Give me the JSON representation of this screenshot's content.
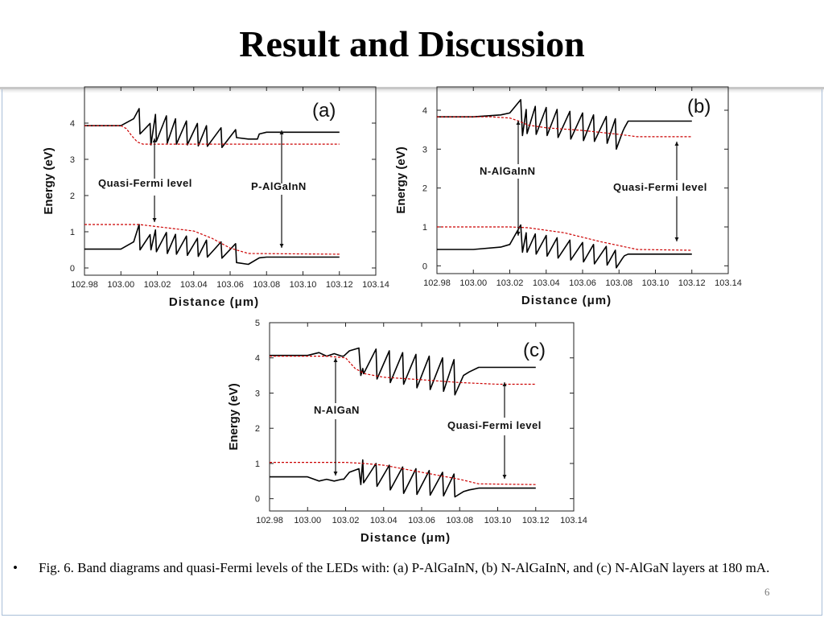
{
  "slide": {
    "title": "Result and Discussion",
    "caption_bullet": "•",
    "caption": "Fig. 6. Band diagrams and quasi-Fermi levels of the LEDs with: (a) P-AlGaInN, (b) N-AlGaInN, and (c) N-AlGaN layers at 180 mA.",
    "page_number": "6"
  },
  "chart_data": [
    {
      "type": "line",
      "panel_label": "(a)",
      "xlabel": "Distance (μm)",
      "ylabel": "Energy (eV)",
      "xlim": [
        102.98,
        103.14
      ],
      "ylim": [
        -0.2,
        5
      ],
      "xticks": [
        102.98,
        103.0,
        103.02,
        103.04,
        103.06,
        103.08,
        103.1,
        103.12,
        103.14
      ],
      "xtick_labels": [
        "102.98",
        "103.00",
        "103.02",
        "103.04",
        "103.06",
        "103.08",
        "103.10",
        "103.12",
        "103.14"
      ],
      "yticks": [
        0,
        1,
        2,
        3,
        4
      ],
      "ytick_labels": [
        "0",
        "1",
        "2",
        "3",
        "4"
      ],
      "annotations": [
        "Quasi-Fermi level",
        "P-AlGaInN"
      ],
      "series": [
        {
          "style": "solid",
          "color": "#000000",
          "x": [
            102.98,
            103.0,
            103.007,
            103.01,
            103.0105,
            103.016,
            103.0165,
            103.019,
            103.0195,
            103.025,
            103.0255,
            103.03,
            103.0305,
            103.036,
            103.0365,
            103.042,
            103.0425,
            103.047,
            103.0475,
            103.055,
            103.0555,
            103.063,
            103.0635,
            103.07,
            103.075,
            103.076,
            103.08,
            103.12
          ],
          "y": [
            3.93,
            3.93,
            4.12,
            4.4,
            3.7,
            3.99,
            3.4,
            4.24,
            3.5,
            4.2,
            3.45,
            4.12,
            3.42,
            4.06,
            3.4,
            3.99,
            3.37,
            3.93,
            3.36,
            3.87,
            3.33,
            3.82,
            3.6,
            3.56,
            3.56,
            3.7,
            3.75,
            3.75
          ]
        },
        {
          "style": "dashed",
          "color": "#cc0000",
          "x": [
            102.98,
            103.0,
            103.003,
            103.006,
            103.009,
            103.012,
            103.016,
            103.12
          ],
          "y": [
            3.93,
            3.93,
            3.85,
            3.65,
            3.48,
            3.42,
            3.42,
            3.42
          ]
        },
        {
          "style": "solid",
          "color": "#000000",
          "x": [
            102.98,
            103.0,
            103.007,
            103.01,
            103.0105,
            103.016,
            103.0165,
            103.019,
            103.0195,
            103.025,
            103.0255,
            103.03,
            103.0305,
            103.036,
            103.0365,
            103.042,
            103.0425,
            103.047,
            103.0475,
            103.055,
            103.0555,
            103.063,
            103.0635,
            103.07,
            103.075,
            103.076,
            103.08,
            103.12
          ],
          "y": [
            0.52,
            0.52,
            0.72,
            1.2,
            0.5,
            0.92,
            0.5,
            1.05,
            0.45,
            0.98,
            0.4,
            0.93,
            0.38,
            0.88,
            0.35,
            0.82,
            0.32,
            0.77,
            0.3,
            0.72,
            0.27,
            0.67,
            0.15,
            0.1,
            0.25,
            0.28,
            0.3,
            0.3
          ]
        },
        {
          "style": "dashed",
          "color": "#cc0000",
          "x": [
            102.98,
            103.01,
            103.04,
            103.05,
            103.06,
            103.07,
            103.12
          ],
          "y": [
            1.2,
            1.2,
            1.02,
            0.82,
            0.55,
            0.4,
            0.38
          ]
        }
      ]
    },
    {
      "type": "line",
      "panel_label": "(b)",
      "xlabel": "Distance (μm)",
      "ylabel": "Energy (eV)",
      "xlim": [
        102.98,
        103.14
      ],
      "ylim": [
        -0.2,
        4.6
      ],
      "xticks": [
        102.98,
        103.0,
        103.02,
        103.04,
        103.06,
        103.08,
        103.1,
        103.12,
        103.14
      ],
      "xtick_labels": [
        "102.98",
        "103.00",
        "103.02",
        "103.04",
        "103.06",
        "103.08",
        "103.10",
        "103.12",
        "103.14"
      ],
      "yticks": [
        0,
        1,
        2,
        3,
        4
      ],
      "ytick_labels": [
        "0",
        "1",
        "2",
        "3",
        "4"
      ],
      "annotations": [
        "N-AlGaInN",
        "Quasi-Fermi level"
      ],
      "series": [
        {
          "style": "solid",
          "color": "#000000",
          "x": [
            102.98,
            103.0,
            103.015,
            103.02,
            103.026,
            103.027,
            103.029,
            103.0295,
            103.034,
            103.0345,
            103.04,
            103.0405,
            103.046,
            103.0465,
            103.053,
            103.0535,
            103.06,
            103.0605,
            103.066,
            103.0665,
            103.073,
            103.0735,
            103.078,
            103.0785,
            103.082,
            103.083,
            103.085,
            103.12
          ],
          "y": [
            3.83,
            3.83,
            3.88,
            3.93,
            4.27,
            3.35,
            4.02,
            3.4,
            4.1,
            3.38,
            4.07,
            3.35,
            4.02,
            3.3,
            3.97,
            3.26,
            3.93,
            3.22,
            3.88,
            3.2,
            3.84,
            3.15,
            3.78,
            3.0,
            3.45,
            3.55,
            3.72,
            3.72
          ]
        },
        {
          "style": "dashed",
          "color": "#cc0000",
          "x": [
            102.98,
            103.01,
            103.02,
            103.025,
            103.03,
            103.04,
            103.06,
            103.08,
            103.09,
            103.12
          ],
          "y": [
            3.83,
            3.83,
            3.8,
            3.72,
            3.62,
            3.55,
            3.48,
            3.38,
            3.32,
            3.32
          ]
        },
        {
          "style": "solid",
          "color": "#000000",
          "x": [
            102.98,
            103.0,
            103.015,
            103.02,
            103.026,
            103.027,
            103.029,
            103.0295,
            103.034,
            103.0345,
            103.04,
            103.0405,
            103.046,
            103.0465,
            103.053,
            103.0535,
            103.06,
            103.0605,
            103.066,
            103.0665,
            103.073,
            103.0735,
            103.078,
            103.0785,
            103.082,
            103.083,
            103.085,
            103.12
          ],
          "y": [
            0.42,
            0.42,
            0.48,
            0.55,
            1.05,
            0.35,
            0.85,
            0.35,
            0.82,
            0.3,
            0.78,
            0.25,
            0.72,
            0.2,
            0.66,
            0.15,
            0.6,
            0.1,
            0.55,
            0.05,
            0.5,
            0.02,
            0.4,
            -0.05,
            0.2,
            0.26,
            0.3,
            0.3
          ]
        },
        {
          "style": "dashed",
          "color": "#cc0000",
          "x": [
            102.98,
            103.02,
            103.03,
            103.05,
            103.07,
            103.09,
            103.12
          ],
          "y": [
            1.0,
            1.0,
            0.98,
            0.85,
            0.62,
            0.42,
            0.4
          ]
        }
      ]
    },
    {
      "type": "line",
      "panel_label": "(c)",
      "xlabel": "Distance (μm)",
      "ylabel": "Energy (eV)",
      "xlim": [
        102.98,
        103.14
      ],
      "ylim": [
        -0.35,
        5
      ],
      "xticks": [
        102.98,
        103.0,
        103.02,
        103.04,
        103.06,
        103.08,
        103.1,
        103.12,
        103.14
      ],
      "xtick_labels": [
        "102.98",
        "103.00",
        "103.02",
        "103.04",
        "103.06",
        "103.08",
        "103.10",
        "103.12",
        "103.14"
      ],
      "yticks": [
        0,
        1,
        2,
        3,
        4,
        5
      ],
      "ytick_labels": [
        "0",
        "1",
        "2",
        "3",
        "4",
        "5"
      ],
      "annotations": [
        "N-AlGaN",
        "Quasi-Fermi level"
      ],
      "series": [
        {
          "style": "solid",
          "color": "#000000",
          "x": [
            102.98,
            103.0,
            103.006,
            103.01,
            103.014,
            103.018,
            103.019,
            103.022,
            103.027,
            103.028,
            103.029,
            103.0295,
            103.036,
            103.0365,
            103.043,
            103.0435,
            103.05,
            103.0505,
            103.057,
            103.0575,
            103.064,
            103.0645,
            103.071,
            103.0715,
            103.077,
            103.0775,
            103.082,
            103.085,
            103.09,
            103.12
          ],
          "y": [
            4.07,
            4.07,
            4.15,
            4.05,
            4.12,
            4.05,
            4.05,
            4.2,
            4.28,
            3.5,
            3.7,
            3.55,
            4.25,
            3.4,
            4.2,
            3.3,
            4.15,
            3.25,
            4.1,
            3.15,
            4.05,
            3.1,
            4.0,
            3.05,
            3.95,
            2.95,
            3.5,
            3.6,
            3.73,
            3.73
          ]
        },
        {
          "style": "dashed",
          "color": "#cc0000",
          "x": [
            102.98,
            103.01,
            103.02,
            103.025,
            103.03,
            103.04,
            103.06,
            103.08,
            103.1,
            103.12
          ],
          "y": [
            4.05,
            4.05,
            4.0,
            3.7,
            3.55,
            3.45,
            3.38,
            3.3,
            3.25,
            3.25
          ]
        },
        {
          "style": "solid",
          "color": "#000000",
          "x": [
            102.98,
            103.0,
            103.006,
            103.01,
            103.014,
            103.018,
            103.019,
            103.022,
            103.027,
            103.028,
            103.029,
            103.0295,
            103.036,
            103.0365,
            103.043,
            103.0435,
            103.05,
            103.0505,
            103.057,
            103.0575,
            103.064,
            103.0645,
            103.071,
            103.0715,
            103.077,
            103.0775,
            103.082,
            103.085,
            103.09,
            103.12
          ],
          "y": [
            0.62,
            0.62,
            0.5,
            0.55,
            0.5,
            0.55,
            0.55,
            0.75,
            0.85,
            0.4,
            1.1,
            0.45,
            1.0,
            0.35,
            0.95,
            0.25,
            0.9,
            0.15,
            0.85,
            0.12,
            0.8,
            0.1,
            0.75,
            0.08,
            0.7,
            0.05,
            0.2,
            0.25,
            0.3,
            0.3
          ]
        },
        {
          "style": "dashed",
          "color": "#cc0000",
          "x": [
            102.98,
            103.02,
            103.03,
            103.04,
            103.06,
            103.08,
            103.09,
            103.12
          ],
          "y": [
            1.03,
            1.03,
            1.0,
            0.95,
            0.75,
            0.55,
            0.42,
            0.4
          ]
        }
      ]
    }
  ]
}
